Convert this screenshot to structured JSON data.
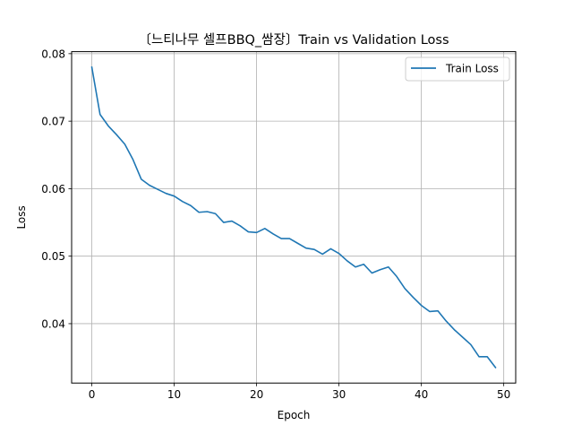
{
  "chart_data": {
    "type": "line",
    "title": "〔느티나무 셀프BBQ_쌈장〕Train vs Validation Loss",
    "xlabel": "Epoch",
    "ylabel": "Loss",
    "xlim": [
      -2.45,
      51.45
    ],
    "ylim": [
      0.0312,
      0.0803
    ],
    "xticks": [
      0,
      10,
      20,
      30,
      40,
      50
    ],
    "xtick_labels": [
      "0",
      "10",
      "20",
      "30",
      "40",
      "50"
    ],
    "yticks": [
      0.04,
      0.05,
      0.06,
      0.07,
      0.08
    ],
    "ytick_labels": [
      "0.04",
      "0.05",
      "0.06",
      "0.07",
      "0.08"
    ],
    "grid": true,
    "legend_position": "top-right",
    "series": [
      {
        "name": "Train Loss",
        "color": "#1f77b4",
        "x": [
          0,
          1,
          2,
          3,
          4,
          5,
          6,
          7,
          8,
          9,
          10,
          11,
          12,
          13,
          14,
          15,
          16,
          17,
          18,
          19,
          20,
          21,
          22,
          23,
          24,
          25,
          26,
          27,
          28,
          29,
          30,
          31,
          32,
          33,
          34,
          35,
          36,
          37,
          38,
          39,
          40,
          41,
          42,
          43,
          44,
          45,
          46,
          47,
          48,
          49
        ],
        "values": [
          0.078,
          0.071,
          0.0693,
          0.068,
          0.0666,
          0.0643,
          0.0614,
          0.0605,
          0.0599,
          0.0593,
          0.0589,
          0.0581,
          0.0575,
          0.0565,
          0.0566,
          0.0563,
          0.055,
          0.0552,
          0.0545,
          0.0536,
          0.0535,
          0.0541,
          0.0533,
          0.0526,
          0.0526,
          0.0519,
          0.0512,
          0.051,
          0.0503,
          0.0511,
          0.0504,
          0.0493,
          0.0484,
          0.0488,
          0.0475,
          0.048,
          0.0484,
          0.047,
          0.0452,
          0.0439,
          0.0427,
          0.0418,
          0.0419,
          0.0404,
          0.0391,
          0.038,
          0.0369,
          0.0351,
          0.0351,
          0.0335
        ]
      }
    ]
  }
}
